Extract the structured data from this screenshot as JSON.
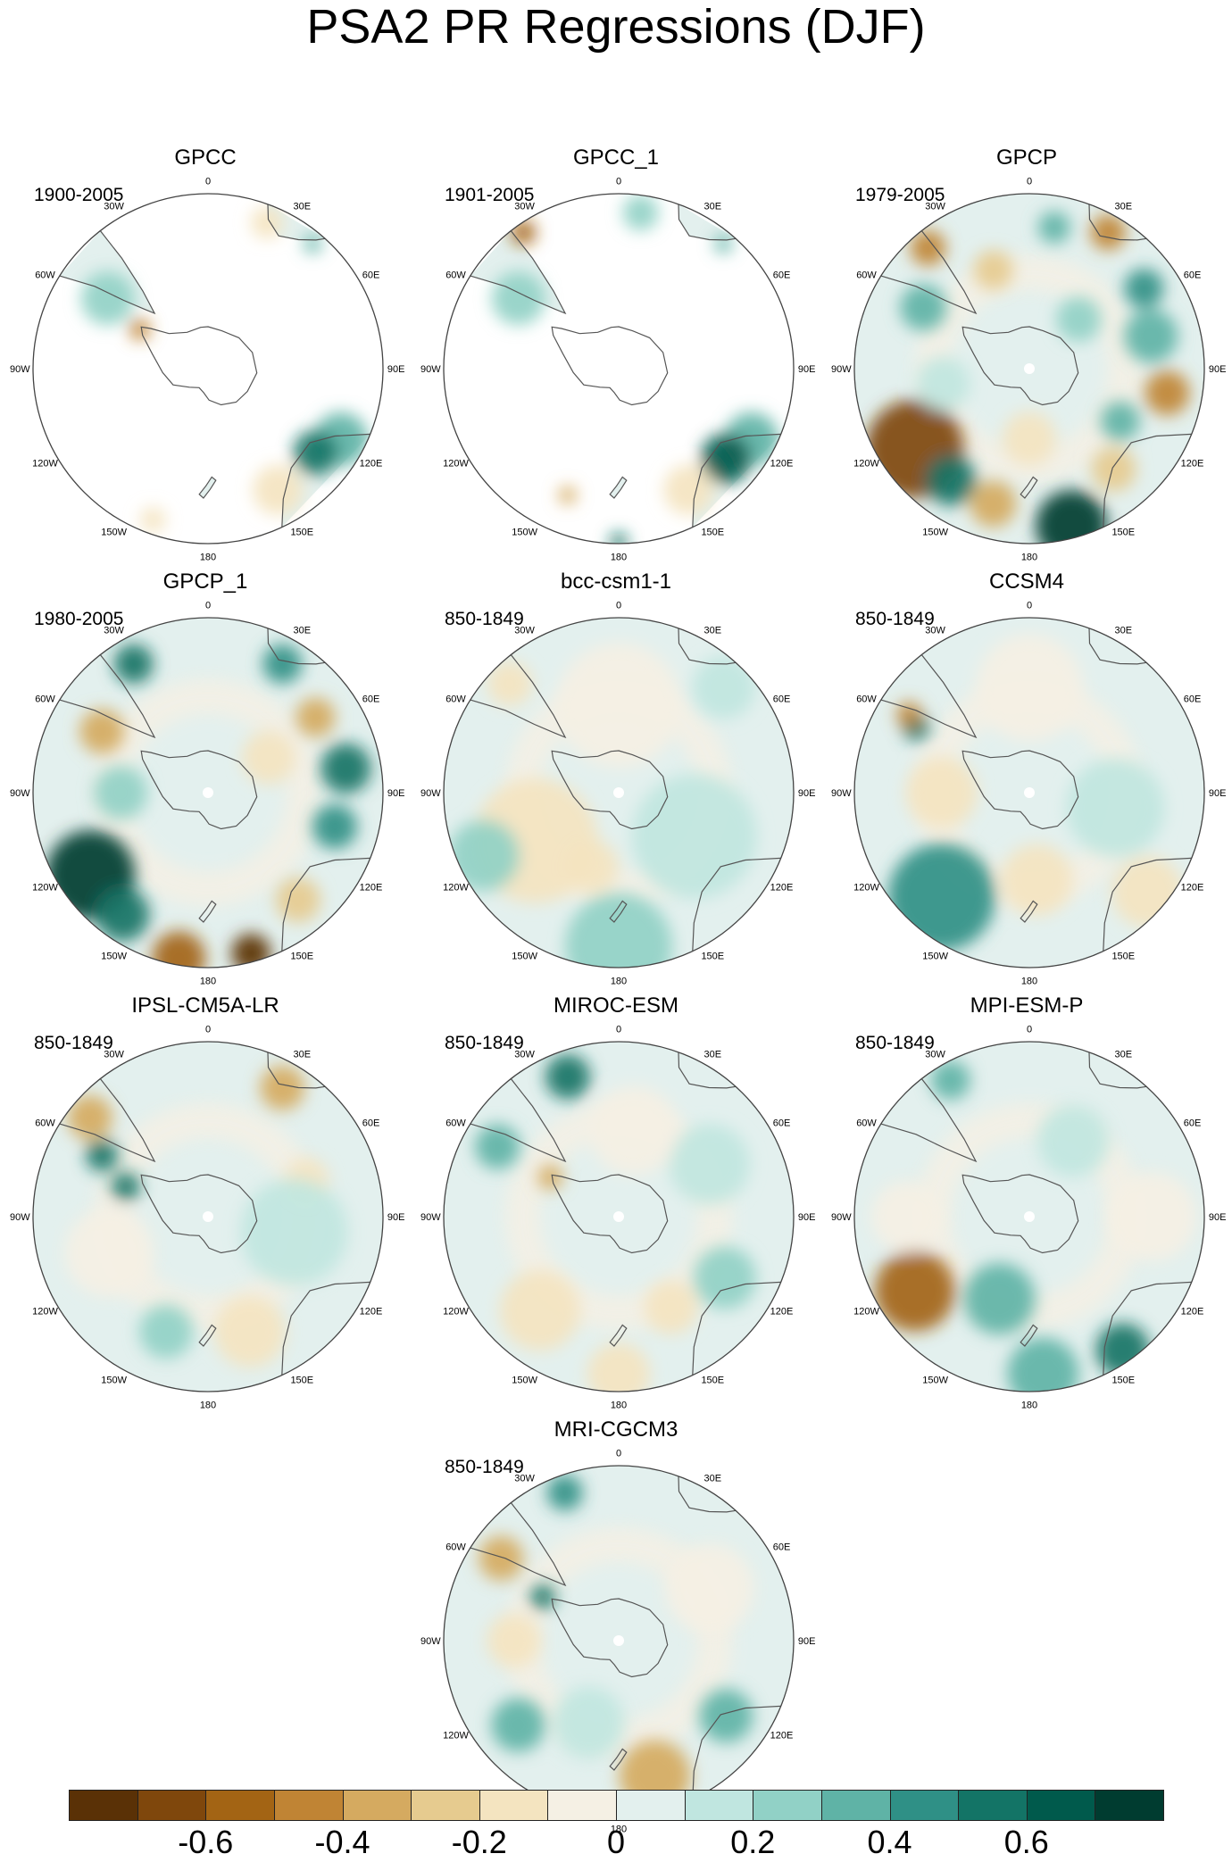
{
  "title": "PSA2 PR Regressions (DJF)",
  "lon_labels": [
    "0",
    "30E",
    "60E",
    "90E",
    "120E",
    "150E",
    "180",
    "150W",
    "120W",
    "90W",
    "60W",
    "30W"
  ],
  "panels": [
    {
      "name": "GPCC",
      "period": "1900-2005",
      "kind": "land",
      "blobs": [
        {
          "a": 118,
          "d": 0.86,
          "r": 30,
          "v": 0.3
        },
        {
          "a": 128,
          "d": 0.78,
          "r": 25,
          "v": 0.6
        },
        {
          "a": 150,
          "d": 0.8,
          "r": 28,
          "v": -0.2
        },
        {
          "a": 200,
          "d": 0.92,
          "r": 14,
          "v": -0.2
        },
        {
          "a": 305,
          "d": 0.7,
          "r": 30,
          "v": 0.2
        },
        {
          "a": 300,
          "d": 0.45,
          "r": 12,
          "v": -0.5
        },
        {
          "a": 22,
          "d": 0.9,
          "r": 18,
          "v": -0.2
        },
        {
          "a": 40,
          "d": 0.93,
          "r": 10,
          "v": 0.3
        }
      ]
    },
    {
      "name": "GPCC_1",
      "period": "1901-2005",
      "kind": "land",
      "blobs": [
        {
          "a": 118,
          "d": 0.86,
          "r": 30,
          "v": 0.3
        },
        {
          "a": 130,
          "d": 0.8,
          "r": 28,
          "v": 0.65
        },
        {
          "a": 150,
          "d": 0.8,
          "r": 28,
          "v": -0.2
        },
        {
          "a": 202,
          "d": 0.78,
          "r": 10,
          "v": -0.4
        },
        {
          "a": 180,
          "d": 0.99,
          "r": 10,
          "v": 0.6
        },
        {
          "a": 305,
          "d": 0.7,
          "r": 30,
          "v": 0.2
        },
        {
          "a": 325,
          "d": 0.95,
          "r": 14,
          "v": -0.6
        },
        {
          "a": 8,
          "d": 0.9,
          "r": 20,
          "v": 0.2
        },
        {
          "a": 40,
          "d": 0.93,
          "r": 10,
          "v": 0.3
        }
      ]
    },
    {
      "name": "GPCP",
      "period": "1979-2005",
      "kind": "full",
      "blobs": [
        {
          "a": 235,
          "d": 0.8,
          "r": 55,
          "v": -0.7
        },
        {
          "a": 215,
          "d": 0.78,
          "r": 28,
          "v": 0.6
        },
        {
          "a": 195,
          "d": 0.8,
          "r": 26,
          "v": -0.4
        },
        {
          "a": 165,
          "d": 0.93,
          "r": 40,
          "v": 0.7
        },
        {
          "a": 140,
          "d": 0.75,
          "r": 25,
          "v": -0.3
        },
        {
          "a": 120,
          "d": 0.6,
          "r": 22,
          "v": 0.3
        },
        {
          "a": 100,
          "d": 0.8,
          "r": 25,
          "v": -0.5
        },
        {
          "a": 75,
          "d": 0.72,
          "r": 30,
          "v": 0.3
        },
        {
          "a": 55,
          "d": 0.8,
          "r": 22,
          "v": 0.4
        },
        {
          "a": 30,
          "d": 0.9,
          "r": 20,
          "v": -0.5
        },
        {
          "a": 10,
          "d": 0.82,
          "r": 18,
          "v": 0.3
        },
        {
          "a": 340,
          "d": 0.6,
          "r": 22,
          "v": -0.3
        },
        {
          "a": 320,
          "d": 0.9,
          "r": 20,
          "v": -0.5
        },
        {
          "a": 300,
          "d": 0.7,
          "r": 26,
          "v": 0.3
        },
        {
          "a": 260,
          "d": 0.5,
          "r": 30,
          "v": 0.15
        },
        {
          "a": 45,
          "d": 0.4,
          "r": 25,
          "v": 0.2
        },
        {
          "a": 180,
          "d": 0.4,
          "r": 30,
          "v": -0.15
        }
      ]
    },
    {
      "name": "GPCP_1",
      "period": "1980-2005",
      "kind": "full",
      "blobs": [
        {
          "a": 235,
          "d": 0.82,
          "r": 50,
          "v": 0.75
        },
        {
          "a": 215,
          "d": 0.85,
          "r": 30,
          "v": 0.6
        },
        {
          "a": 190,
          "d": 0.96,
          "r": 30,
          "v": -0.6
        },
        {
          "a": 165,
          "d": 0.95,
          "r": 22,
          "v": -0.8
        },
        {
          "a": 140,
          "d": 0.8,
          "r": 25,
          "v": -0.3
        },
        {
          "a": 105,
          "d": 0.75,
          "r": 25,
          "v": 0.4
        },
        {
          "a": 80,
          "d": 0.8,
          "r": 28,
          "v": 0.55
        },
        {
          "a": 55,
          "d": 0.75,
          "r": 22,
          "v": -0.4
        },
        {
          "a": 30,
          "d": 0.85,
          "r": 22,
          "v": 0.4
        },
        {
          "a": 330,
          "d": 0.85,
          "r": 22,
          "v": 0.6
        },
        {
          "a": 300,
          "d": 0.7,
          "r": 25,
          "v": -0.4
        },
        {
          "a": 270,
          "d": 0.5,
          "r": 30,
          "v": 0.2
        },
        {
          "a": 60,
          "d": 0.4,
          "r": 30,
          "v": -0.15
        }
      ]
    },
    {
      "name": "bcc-csm1-1",
      "period": "850-1849",
      "kind": "full",
      "blobs": [
        {
          "a": 0,
          "d": 0.5,
          "r": 70,
          "v": -0.1
        },
        {
          "a": 120,
          "d": 0.5,
          "r": 70,
          "v": 0.12
        },
        {
          "a": 240,
          "d": 0.55,
          "r": 70,
          "v": -0.12
        },
        {
          "a": 180,
          "d": 0.88,
          "r": 60,
          "v": 0.25
        },
        {
          "a": 315,
          "d": 0.88,
          "r": 25,
          "v": -0.2
        },
        {
          "a": 245,
          "d": 0.85,
          "r": 40,
          "v": 0.2
        },
        {
          "a": 45,
          "d": 0.85,
          "r": 35,
          "v": 0.15
        },
        {
          "a": 200,
          "d": 0.45,
          "r": 30,
          "v": -0.2
        }
      ]
    },
    {
      "name": "CCSM4",
      "period": "850-1849",
      "kind": "full",
      "blobs": [
        {
          "a": 220,
          "d": 0.78,
          "r": 60,
          "v": 0.45
        },
        {
          "a": 300,
          "d": 0.75,
          "r": 15,
          "v": 0.6
        },
        {
          "a": 303,
          "d": 0.82,
          "r": 14,
          "v": -0.5
        },
        {
          "a": 175,
          "d": 0.5,
          "r": 40,
          "v": -0.2
        },
        {
          "a": 100,
          "d": 0.5,
          "r": 55,
          "v": 0.12
        },
        {
          "a": 0,
          "d": 0.6,
          "r": 60,
          "v": -0.1
        },
        {
          "a": 130,
          "d": 0.88,
          "r": 40,
          "v": -0.15
        },
        {
          "a": 270,
          "d": 0.5,
          "r": 40,
          "v": -0.12
        }
      ]
    },
    {
      "name": "IPSL-CM5A-LR",
      "period": "850-1849",
      "kind": "full",
      "blobs": [
        {
          "a": 310,
          "d": 0.88,
          "r": 25,
          "v": -0.35
        },
        {
          "a": 300,
          "d": 0.7,
          "r": 18,
          "v": 0.5
        },
        {
          "a": 290,
          "d": 0.5,
          "r": 16,
          "v": 0.6
        },
        {
          "a": 30,
          "d": 0.85,
          "r": 25,
          "v": -0.35
        },
        {
          "a": 70,
          "d": 0.6,
          "r": 25,
          "v": -0.2
        },
        {
          "a": 200,
          "d": 0.7,
          "r": 30,
          "v": 0.25
        },
        {
          "a": 160,
          "d": 0.7,
          "r": 40,
          "v": -0.12
        },
        {
          "a": 250,
          "d": 0.6,
          "r": 50,
          "v": -0.1
        },
        {
          "a": 100,
          "d": 0.5,
          "r": 60,
          "v": 0.1
        }
      ]
    },
    {
      "name": "MIROC-ESM",
      "period": "850-1849",
      "kind": "full",
      "blobs": [
        {
          "a": 340,
          "d": 0.85,
          "r": 25,
          "v": 0.5
        },
        {
          "a": 300,
          "d": 0.8,
          "r": 25,
          "v": 0.35
        },
        {
          "a": 300,
          "d": 0.45,
          "r": 14,
          "v": -0.4
        },
        {
          "a": 220,
          "d": 0.7,
          "r": 45,
          "v": -0.2
        },
        {
          "a": 150,
          "d": 0.6,
          "r": 30,
          "v": -0.2
        },
        {
          "a": 120,
          "d": 0.7,
          "r": 35,
          "v": 0.2
        },
        {
          "a": 60,
          "d": 0.6,
          "r": 45,
          "v": 0.12
        },
        {
          "a": 10,
          "d": 0.5,
          "r": 50,
          "v": -0.1
        },
        {
          "a": 180,
          "d": 0.9,
          "r": 35,
          "v": -0.15
        }
      ]
    },
    {
      "name": "MPI-ESM-P",
      "period": "850-1849",
      "kind": "full",
      "blobs": [
        {
          "a": 237,
          "d": 0.78,
          "r": 45,
          "v": -0.55
        },
        {
          "a": 200,
          "d": 0.5,
          "r": 40,
          "v": 0.3
        },
        {
          "a": 145,
          "d": 0.93,
          "r": 30,
          "v": 0.6
        },
        {
          "a": 175,
          "d": 0.9,
          "r": 40,
          "v": 0.3
        },
        {
          "a": 330,
          "d": 0.9,
          "r": 22,
          "v": 0.35
        },
        {
          "a": 270,
          "d": 0.7,
          "r": 40,
          "v": -0.1
        },
        {
          "a": 90,
          "d": 0.7,
          "r": 50,
          "v": -0.1
        },
        {
          "a": 30,
          "d": 0.5,
          "r": 40,
          "v": 0.1
        }
      ]
    },
    {
      "name": "MRI-CGCM3",
      "period": "850-1849",
      "kind": "full",
      "blobs": [
        {
          "a": 305,
          "d": 0.82,
          "r": 25,
          "v": -0.35
        },
        {
          "a": 300,
          "d": 0.5,
          "r": 14,
          "v": 0.6
        },
        {
          "a": 340,
          "d": 0.9,
          "r": 20,
          "v": 0.4
        },
        {
          "a": 165,
          "d": 0.8,
          "r": 40,
          "v": -0.35
        },
        {
          "a": 230,
          "d": 0.75,
          "r": 30,
          "v": 0.3
        },
        {
          "a": 125,
          "d": 0.75,
          "r": 30,
          "v": 0.35
        },
        {
          "a": 200,
          "d": 0.5,
          "r": 40,
          "v": 0.15
        },
        {
          "a": 60,
          "d": 0.6,
          "r": 50,
          "v": -0.1
        },
        {
          "a": 270,
          "d": 0.6,
          "r": 30,
          "v": -0.2
        }
      ]
    }
  ],
  "colorbar": {
    "colors": [
      "#5a3106",
      "#7f470c",
      "#a36414",
      "#c08434",
      "#d5aa60",
      "#e6cb8f",
      "#f4e4c0",
      "#f5f0e4",
      "#e3f0ee",
      "#c0e6e0",
      "#91d1c6",
      "#5fb3a6",
      "#2f9086",
      "#137466",
      "#005a4c",
      "#003c30"
    ],
    "labels": [
      "-0.6",
      "-0.4",
      "-0.2",
      "0",
      "0.2",
      "0.4",
      "0.6"
    ]
  }
}
